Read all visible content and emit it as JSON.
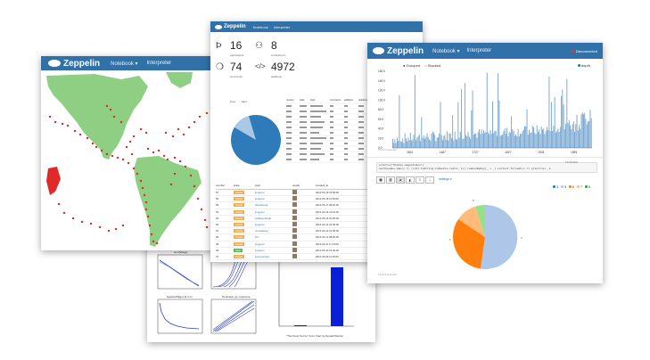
{
  "brand": {
    "name": "Zeppelin",
    "color": "#3071a9"
  },
  "menu": {
    "notebook": "Notebook",
    "interpreter": "Interpreter"
  },
  "stats": [
    {
      "icon": "stack-icon",
      "value": "16",
      "label": "participants"
    },
    {
      "icon": "users-icon",
      "value": "8",
      "label": "Contributors"
    },
    {
      "icon": "comments-icon",
      "value": "74",
      "label": "comments"
    },
    {
      "icon": "code-icon",
      "value": "4972",
      "label": "additions"
    }
  ],
  "right_window": {
    "status": "Disconnected",
    "legend": [
      "Grouped",
      "Stacked"
    ],
    "series_legend": "depth",
    "y_ticks": [
      "160.0",
      "140.0",
      "120.0",
      "100.0",
      "80.0",
      "60.0",
      "40.0",
      "20.0",
      "0.0"
    ],
    "x_ticks": [
      "1604",
      "1667",
      "1727",
      "1827",
      "1903",
      "1959"
    ],
    "took": "Took 0 seconds",
    "code_line1": "println(\"Stable magnitudes\")",
    "code_line2": "earthquake.map(x => (x(5).toString.toDouble.toInt, 1)).reduceByKey(_ + _).collect.foreach(x => println(x._1",
    "status2": "FINISHED",
    "settings": "settings",
    "pie_legend": [
      "3",
      "5",
      "6",
      "7",
      "8"
    ],
    "pie_labels": [
      "3",
      "6",
      "5"
    ]
  },
  "middle_window": {
    "small_legend": [
      "lines",
      "bars"
    ],
    "mini_headers": [
      "number",
      "state",
      "login",
      "comments",
      "additions",
      "deletions"
    ],
    "list_headers": [
      "number",
      "state",
      "login",
      "avatar",
      "created_at"
    ],
    "list_rows": [
      [
        "57",
        "closed",
        "jongyoul",
        "2014-03-19 15:00:00"
      ],
      [
        "56",
        "closed",
        "jongyoul",
        "2014-03-18 11:30:00"
      ],
      [
        "55",
        "closed",
        "felixcheung",
        "2014-03-17 09:20:00"
      ],
      [
        "54",
        "closed",
        "jongyoul",
        "2014-03-16 14:10:00"
      ],
      [
        "53",
        "closed",
        "prabhjyotsingh",
        "2014-03-15 10:05:00"
      ],
      [
        "52",
        "closed",
        "jongyoul",
        "2014-03-14 16:45:00"
      ],
      [
        "51",
        "closed",
        "corneadoug",
        "2014-03-13 12:00:00"
      ],
      [
        "50",
        "closed",
        "bzz",
        "2014-03-12 08:30:00"
      ],
      [
        "49",
        "closed",
        "jongyoul",
        "2014-03-11 17:15:00"
      ],
      [
        "48",
        "open",
        "jongyoul",
        "2014-03-10 13:40:00"
      ],
      [
        "47",
        "closed",
        "Leemoonsoo",
        "2014-03-09 11:25:00"
      ],
      [
        "46",
        "closed",
        "jongyoul",
        "2014-03-08 09:50:00"
      ],
      [
        "45",
        "closed",
        "jongyoul",
        "2014-03-07 15:30:00"
      ]
    ]
  },
  "bottom_window": {
    "bar_title": "CLASSES OF SUPERNATURAL POWERS",
    "caption": "\"The Tools So Far\" from chart by Donald Warren",
    "plot_titles": [
      "sum(Wage)",
      "sum(Hours)",
      "logistic(Wage) at 1 lm",
      "Nonlinear, gc, response"
    ]
  }
}
